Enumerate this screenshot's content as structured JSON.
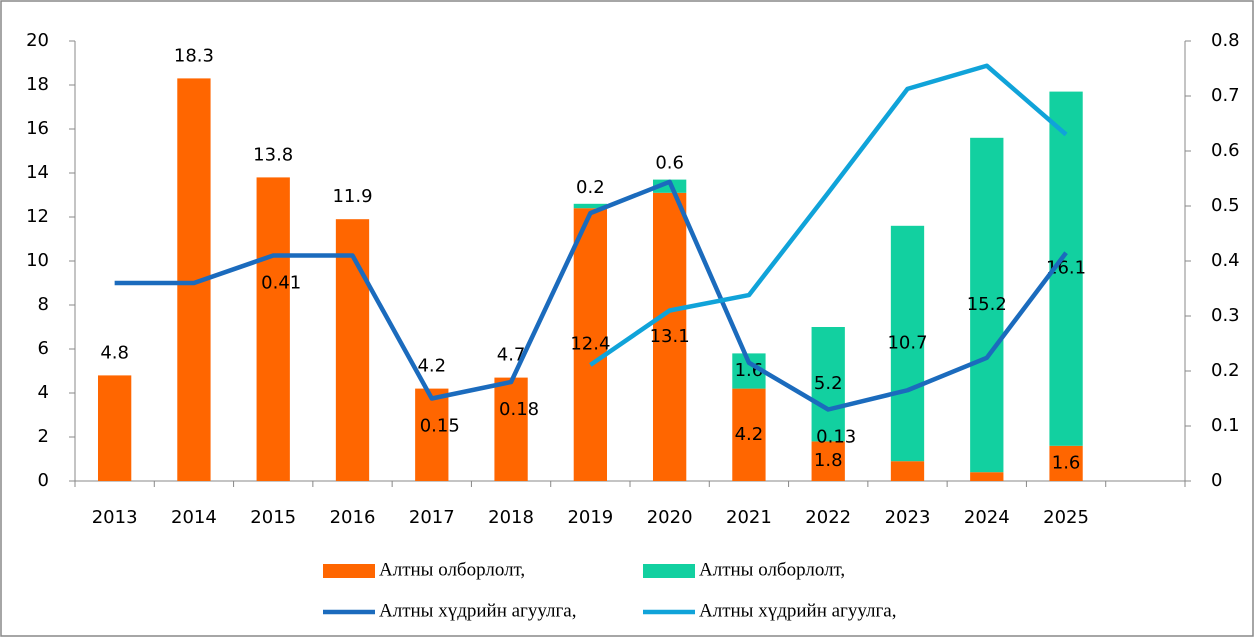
{
  "chart_data": {
    "type": "bar_line",
    "categories": [
      "2013",
      "2014",
      "2015",
      "2016",
      "2017",
      "2018",
      "2019",
      "2020",
      "2021",
      "2022",
      "2023",
      "2024",
      "2025",
      null
    ],
    "series": [
      {
        "name": "Алтны олборлолт,",
        "type": "bar",
        "color": "#ff6600",
        "values": [
          4.8,
          18.3,
          13.8,
          11.9,
          4.2,
          4.7,
          12.4,
          13.1,
          4.2,
          1.8,
          0.9,
          0.4,
          1.6,
          null
        ]
      },
      {
        "name": "Алтны олборлолт,",
        "type": "bar",
        "color": "#12d0a0",
        "values": [
          null,
          null,
          null,
          null,
          null,
          null,
          0.2,
          0.6,
          1.6,
          5.2,
          10.7,
          15.2,
          16.1,
          null
        ]
      },
      {
        "name": "Алтны хүдрийн агуулга,",
        "type": "line",
        "axis": "y2",
        "color": "#1b6bbd",
        "values": [
          0.36,
          0.36,
          0.41,
          0.41,
          0.15,
          0.18,
          0.487,
          0.544,
          0.215,
          0.13,
          0.165,
          0.224,
          0.415,
          null
        ],
        "value_labels": [
          null,
          null,
          "0.41",
          null,
          "0.15",
          "0.18",
          null,
          null,
          null,
          "0.13",
          null,
          null,
          null,
          null
        ]
      },
      {
        "name": "Алтны хүдрийн агуулга,",
        "type": "line",
        "axis": "y2",
        "color": "#10a3d9",
        "values": [
          null,
          null,
          null,
          null,
          null,
          null,
          0.211,
          0.31,
          0.338,
          0.524,
          0.713,
          0.755,
          0.63,
          null
        ]
      }
    ],
    "ylim": [
      0,
      20
    ],
    "yticks": [
      0,
      2,
      4,
      6,
      8,
      10,
      12,
      14,
      16,
      18,
      20
    ],
    "y2lim": [
      0,
      0.8
    ],
    "y2ticks": [
      0,
      0.1,
      0.2,
      0.3,
      0.4,
      0.5,
      0.6,
      0.7,
      0.8
    ]
  }
}
